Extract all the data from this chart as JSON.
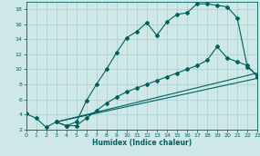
{
  "xlabel": "Humidex (Indice chaleur)",
  "bg_color": "#cee8e8",
  "line_color": "#006060",
  "grid_color": "#aacece",
  "xlim": [
    0,
    23
  ],
  "ylim": [
    2,
    19
  ],
  "xticks": [
    0,
    1,
    2,
    3,
    4,
    5,
    6,
    7,
    8,
    9,
    10,
    11,
    12,
    13,
    14,
    15,
    16,
    17,
    18,
    19,
    20,
    21,
    22,
    23
  ],
  "yticks": [
    2,
    4,
    6,
    8,
    10,
    12,
    14,
    16,
    18
  ],
  "curve1_x": [
    0,
    1,
    2,
    3,
    4,
    5,
    6,
    7,
    8,
    9,
    10,
    11,
    12,
    13,
    14,
    15,
    16,
    17,
    18,
    19,
    20,
    21,
    22,
    23
  ],
  "curve1_y": [
    4.1,
    3.5,
    2.3,
    3.0,
    2.5,
    3.0,
    5.8,
    8.0,
    10.0,
    12.2,
    14.2,
    15.0,
    16.2,
    14.5,
    16.3,
    17.3,
    17.5,
    18.7,
    18.7,
    18.5,
    18.3,
    16.8,
    10.3,
    9.2
  ],
  "curve2_x": [
    3,
    4,
    5,
    6,
    7,
    8,
    9,
    10,
    11,
    12,
    13,
    14,
    15,
    16,
    17,
    18,
    19,
    20,
    21,
    22,
    23
  ],
  "curve2_y": [
    3.0,
    2.5,
    2.5,
    3.5,
    4.5,
    5.5,
    6.3,
    7.0,
    7.5,
    8.0,
    8.5,
    9.0,
    9.5,
    10.0,
    10.5,
    11.2,
    13.0,
    11.5,
    11.0,
    10.5,
    9.0
  ],
  "line1_x": [
    3,
    23
  ],
  "line1_y": [
    3.0,
    9.5
  ],
  "line2_x": [
    3,
    23
  ],
  "line2_y": [
    3.0,
    8.8
  ]
}
